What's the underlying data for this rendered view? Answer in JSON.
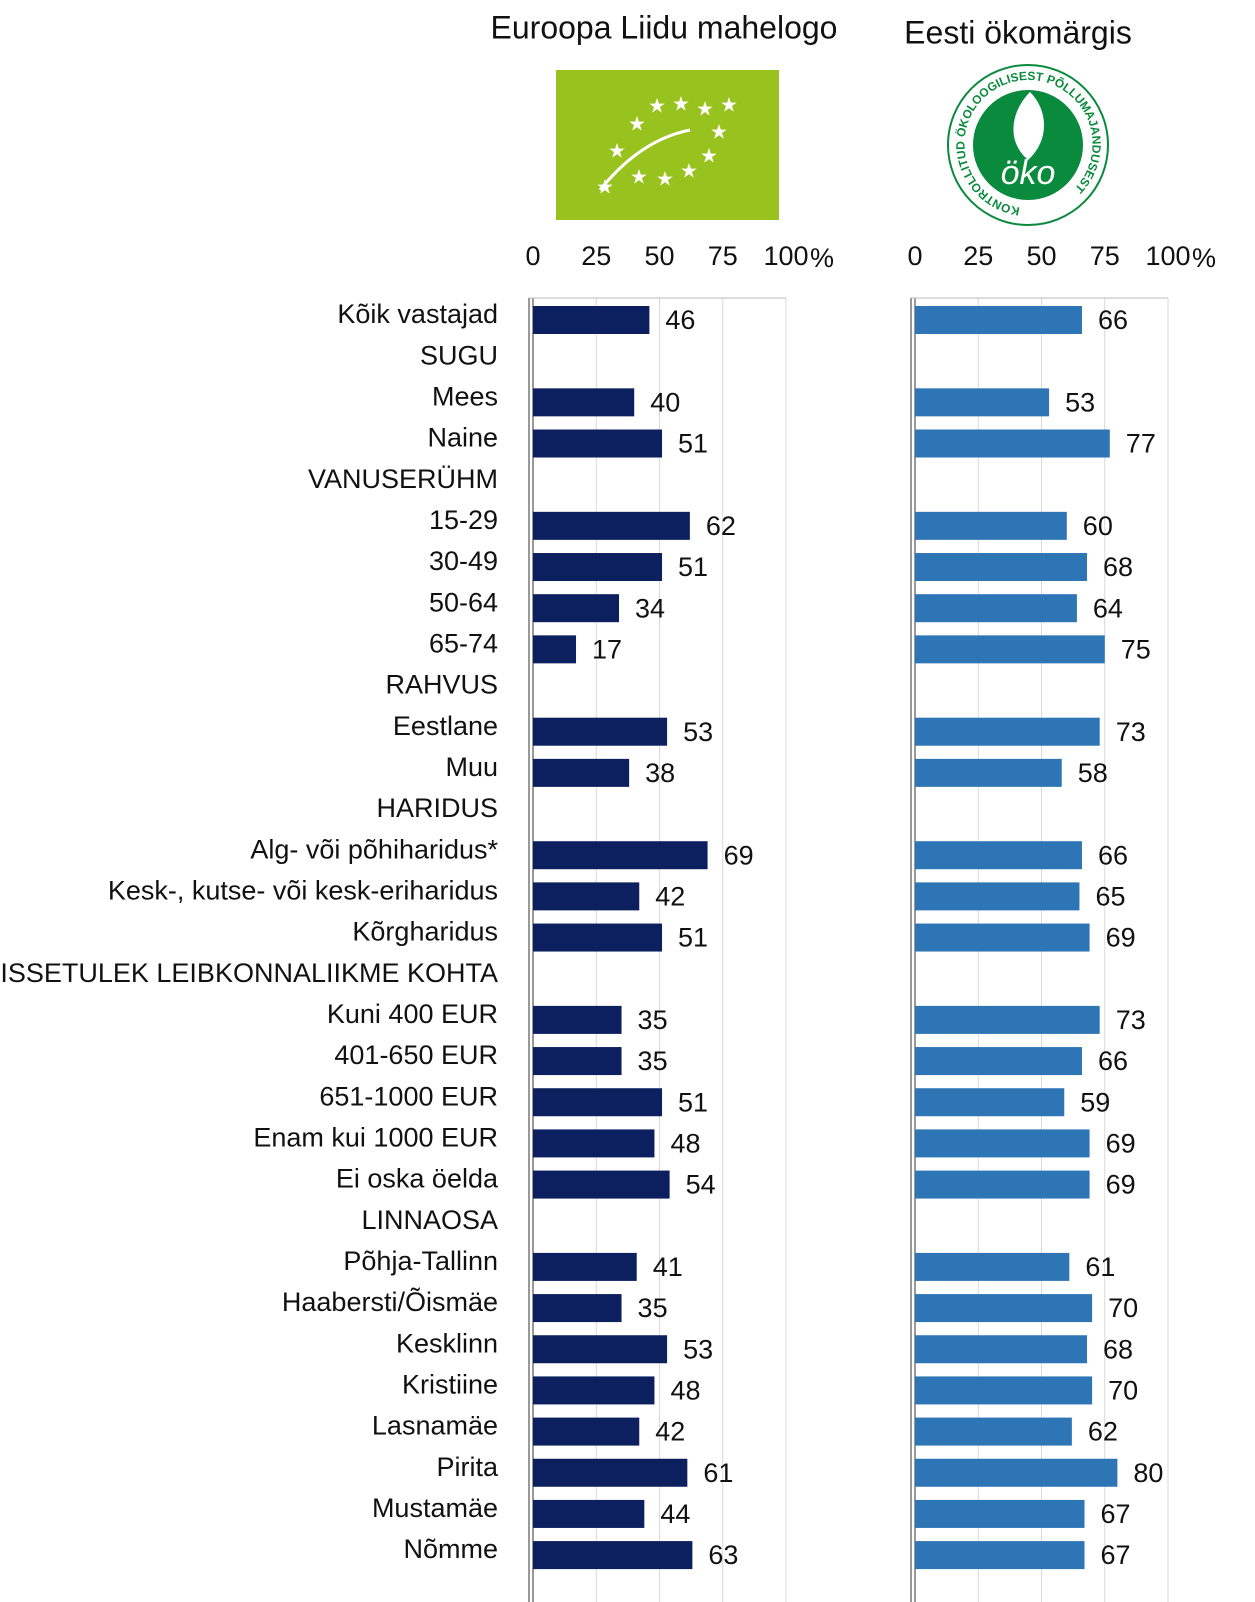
{
  "chart_data": [
    {
      "type": "hbar",
      "title": "Euroopa Liidu mahelogo",
      "color": "#0c1f5e",
      "categories": [
        "Kõik vastajad",
        "SUGU",
        "Mees",
        "Naine",
        "VANUSERÜHM",
        "15-29",
        "30-49",
        "50-64",
        "65-74",
        "RAHVUS",
        "Eestlane",
        "Muu",
        "HARIDUS",
        "Alg- või  põhiharidus*",
        "Kesk-, kutse- või kesk-eriharidus",
        "Kõrgharidus",
        "SISSETULEK LEIBKONNALIIKME KOHTA",
        "Kuni 400 EUR",
        "401-650 EUR",
        "651-1000 EUR",
        "Enam kui 1000 EUR",
        "Ei oska öelda",
        "LINNAOSA",
        "Põhja-Tallinn",
        "Haabersti/Õismäe",
        "Kesklinn",
        "Kristiine",
        "Lasnamäe",
        "Pirita",
        "Mustamäe",
        "Nõmme"
      ],
      "values": [
        46,
        null,
        40,
        51,
        null,
        62,
        51,
        34,
        17,
        null,
        53,
        38,
        null,
        69,
        42,
        51,
        null,
        35,
        35,
        51,
        48,
        54,
        null,
        41,
        35,
        53,
        48,
        42,
        61,
        44,
        63
      ],
      "xlim": [
        0,
        100
      ],
      "xticks": [
        0,
        25,
        50,
        75,
        100
      ],
      "x_unit": "%",
      "grid": true
    },
    {
      "type": "hbar",
      "title": "Eesti ökomärgis",
      "color": "#2e75b6",
      "logo": {
        "center": "öko",
        "ring": "KONTROLLITUD ÖKOLOOGILISEST PÕLLUMAJANDUSEST"
      },
      "values": [
        66,
        null,
        53,
        77,
        null,
        60,
        68,
        64,
        75,
        null,
        73,
        58,
        null,
        66,
        65,
        69,
        null,
        73,
        66,
        59,
        69,
        69,
        null,
        61,
        70,
        68,
        70,
        62,
        80,
        67,
        67
      ],
      "xlim": [
        0,
        100
      ],
      "xticks": [
        0,
        25,
        50,
        75,
        100
      ],
      "x_unit": "%",
      "grid": true
    }
  ]
}
